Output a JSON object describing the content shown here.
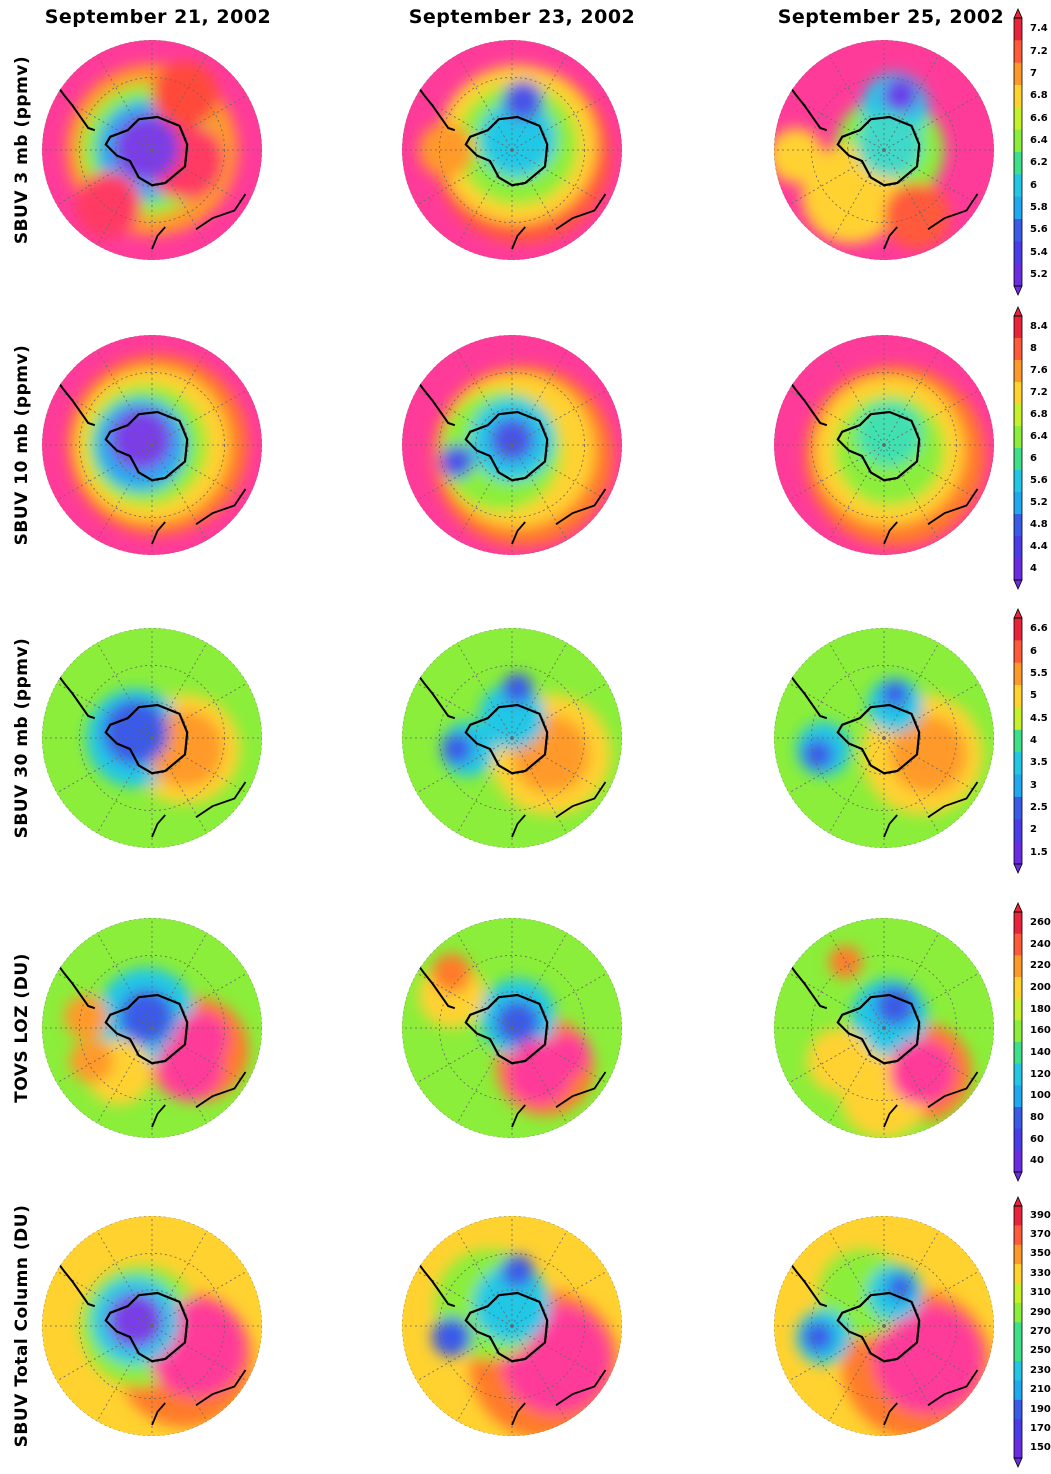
{
  "columns": [
    {
      "date": "September 21, 2002"
    },
    {
      "date": "September 23, 2002"
    },
    {
      "date": "September 25, 2002"
    }
  ],
  "rows": [
    {
      "label": "SBUV 3 mb (ppmv)",
      "colorbar_ticks": [
        "7.4",
        "7.2",
        "7",
        "6.8",
        "6.6",
        "6.4",
        "6.2",
        "6",
        "5.8",
        "5.6",
        "5.4",
        "5.2"
      ],
      "maps": [
        {
          "field_blobs": [
            [
              -0.05,
              -0.02,
              0.3,
              "#7a3ce8"
            ],
            [
              -0.05,
              0.0,
              0.45,
              "#1ea9f0"
            ],
            [
              -0.05,
              0.0,
              0.6,
              "#8bee3a"
            ],
            [
              0.0,
              0.0,
              0.78,
              "#ff9a2a"
            ],
            [
              0.3,
              0.1,
              0.35,
              "#ff3b63"
            ],
            [
              -0.4,
              0.5,
              0.3,
              "#ff3b63"
            ],
            [
              0.3,
              -0.5,
              0.3,
              "#ff4a3a"
            ]
          ],
          "base": "#ff3b9a"
        },
        {
          "field_blobs": [
            [
              0.05,
              -0.1,
              0.35,
              "#22c7e6"
            ],
            [
              0.1,
              -0.45,
              0.18,
              "#4a52e8"
            ],
            [
              0.05,
              -0.05,
              0.55,
              "#8bee3a"
            ],
            [
              0.05,
              -0.05,
              0.72,
              "#ffd230"
            ],
            [
              -0.6,
              0.0,
              0.25,
              "#ff9a2a"
            ],
            [
              0.1,
              0.05,
              0.8,
              "#ff5a3a"
            ]
          ],
          "base": "#ff3b9a"
        },
        {
          "field_blobs": [
            [
              0.15,
              -0.5,
              0.16,
              "#6a3ce8"
            ],
            [
              0.1,
              -0.4,
              0.3,
              "#22c7e6"
            ],
            [
              0.05,
              -0.05,
              0.3,
              "#40d8c8"
            ],
            [
              0.05,
              0.0,
              0.5,
              "#8bee3a"
            ],
            [
              -0.3,
              0.4,
              0.45,
              "#ffd230"
            ],
            [
              0.3,
              0.6,
              0.3,
              "#ff5a3a"
            ],
            [
              -0.8,
              0.05,
              0.25,
              "#ffd230"
            ]
          ],
          "base": "#ff3b9a"
        }
      ]
    },
    {
      "label": "SBUV 10 mb (ppmv)",
      "colorbar_ticks": [
        "8.4",
        "8",
        "7.6",
        "7.2",
        "6.8",
        "6.4",
        "6",
        "5.6",
        "5.2",
        "4.8",
        "4.4",
        "4"
      ],
      "maps": [
        {
          "field_blobs": [
            [
              -0.1,
              -0.05,
              0.28,
              "#7a3ce8"
            ],
            [
              -0.1,
              0.0,
              0.42,
              "#1ea9f0"
            ],
            [
              -0.05,
              0.0,
              0.55,
              "#8bee3a"
            ],
            [
              0.0,
              0.0,
              0.7,
              "#ffd230"
            ],
            [
              0.05,
              0.0,
              0.82,
              "#ff7a2a"
            ]
          ],
          "base": "#ff3b9a"
        },
        {
          "field_blobs": [
            [
              0.0,
              -0.05,
              0.2,
              "#4a52e8"
            ],
            [
              -0.5,
              0.15,
              0.15,
              "#4a52e8"
            ],
            [
              0.0,
              -0.05,
              0.38,
              "#22c7e6"
            ],
            [
              -0.1,
              0.05,
              0.55,
              "#8bee3a"
            ],
            [
              0.05,
              0.05,
              0.7,
              "#ffd230"
            ],
            [
              0.1,
              0.1,
              0.82,
              "#ff7a2a"
            ]
          ],
          "base": "#ff3b9a"
        },
        {
          "field_blobs": [
            [
              0.05,
              -0.1,
              0.3,
              "#40e0b0"
            ],
            [
              0.05,
              0.05,
              0.5,
              "#8bee3a"
            ],
            [
              0.05,
              0.05,
              0.68,
              "#ffd230"
            ],
            [
              0.1,
              0.1,
              0.82,
              "#ff7a2a"
            ]
          ],
          "base": "#ff3b9a"
        }
      ]
    },
    {
      "label": "SBUV 30 mb (ppmv)",
      "colorbar_ticks": [
        "6.6",
        "6",
        "5.5",
        "5",
        "4.5",
        "4",
        "3.5",
        "3",
        "2.5",
        "2",
        "1.5"
      ],
      "maps": [
        {
          "field_blobs": [
            [
              -0.15,
              -0.05,
              0.3,
              "#3a5ae8"
            ],
            [
              -0.15,
              0.0,
              0.45,
              "#22c7e6"
            ],
            [
              0.3,
              0.1,
              0.35,
              "#ff9a2a"
            ],
            [
              0.3,
              0.1,
              0.5,
              "#ffd230"
            ]
          ],
          "base": "#8bee3a"
        },
        {
          "field_blobs": [
            [
              0.05,
              -0.45,
              0.14,
              "#3a5ae8"
            ],
            [
              -0.5,
              0.1,
              0.14,
              "#3a5ae8"
            ],
            [
              0.0,
              -0.2,
              0.3,
              "#22c7e6"
            ],
            [
              -0.4,
              0.1,
              0.25,
              "#22c7e6"
            ],
            [
              0.35,
              0.15,
              0.35,
              "#ff9a2a"
            ],
            [
              0.35,
              0.15,
              0.55,
              "#ffd230"
            ]
          ],
          "base": "#8bee3a"
        },
        {
          "field_blobs": [
            [
              0.1,
              -0.4,
              0.12,
              "#3a5ae8"
            ],
            [
              -0.6,
              0.15,
              0.14,
              "#3a5ae8"
            ],
            [
              0.1,
              -0.3,
              0.25,
              "#22c7e6"
            ],
            [
              -0.55,
              0.1,
              0.25,
              "#22c7e6"
            ],
            [
              0.4,
              0.15,
              0.35,
              "#ff9a2a"
            ],
            [
              0.35,
              0.15,
              0.55,
              "#ffd230"
            ]
          ],
          "base": "#8bee3a"
        }
      ]
    },
    {
      "label": "TOVS LOZ (DU)",
      "colorbar_ticks": [
        "260",
        "240",
        "220",
        "200",
        "180",
        "160",
        "140",
        "120",
        "100",
        "80",
        "60",
        "40"
      ],
      "maps": [
        {
          "field_blobs": [
            [
              -0.05,
              -0.1,
              0.25,
              "#3a5ae8"
            ],
            [
              -0.05,
              -0.1,
              0.45,
              "#22c7e6"
            ],
            [
              0.45,
              0.1,
              0.25,
              "#ff3b9a"
            ],
            [
              0.35,
              0.35,
              0.3,
              "#ff3b9a"
            ],
            [
              0.4,
              0.2,
              0.48,
              "#ff7a2a"
            ],
            [
              -0.6,
              -0.1,
              0.2,
              "#ff9a2a"
            ],
            [
              -0.55,
              0.3,
              0.2,
              "#ff9a2a"
            ],
            [
              -0.3,
              0.4,
              0.3,
              "#ffd230"
            ]
          ],
          "base": "#8bee3a"
        },
        {
          "field_blobs": [
            [
              0.05,
              -0.05,
              0.2,
              "#3a5ae8"
            ],
            [
              0.05,
              -0.1,
              0.35,
              "#22c7e6"
            ],
            [
              0.25,
              0.4,
              0.3,
              "#ff3b9a"
            ],
            [
              0.5,
              0.25,
              0.2,
              "#ff3b9a"
            ],
            [
              0.3,
              0.35,
              0.45,
              "#ff7a2a"
            ],
            [
              -0.55,
              -0.5,
              0.18,
              "#ff7a2a"
            ],
            [
              -0.55,
              -0.3,
              0.3,
              "#ffd230"
            ]
          ],
          "base": "#8bee3a"
        },
        {
          "field_blobs": [
            [
              0.1,
              -0.2,
              0.18,
              "#3a5ae8"
            ],
            [
              0.05,
              -0.1,
              0.35,
              "#22c7e6"
            ],
            [
              0.35,
              0.4,
              0.3,
              "#ff3b9a"
            ],
            [
              0.35,
              0.4,
              0.45,
              "#ff7a2a"
            ],
            [
              -0.35,
              -0.6,
              0.15,
              "#ff7a2a"
            ],
            [
              -0.4,
              0.3,
              0.3,
              "#ffd230"
            ],
            [
              0.0,
              0.6,
              0.4,
              "#ffd230"
            ]
          ],
          "base": "#8bee3a"
        }
      ]
    },
    {
      "label": "SBUV Total Column (DU)",
      "colorbar_ticks": [
        "390",
        "370",
        "350",
        "330",
        "310",
        "290",
        "270",
        "250",
        "230",
        "210",
        "190",
        "170",
        "150"
      ],
      "maps": [
        {
          "field_blobs": [
            [
              -0.15,
              -0.05,
              0.25,
              "#7a3ce8"
            ],
            [
              -0.15,
              -0.05,
              0.4,
              "#22c7e6"
            ],
            [
              0.4,
              0.2,
              0.45,
              "#ff3b9a"
            ],
            [
              0.3,
              0.3,
              0.62,
              "#ff7a2a"
            ],
            [
              -0.1,
              0.0,
              0.55,
              "#8bee3a"
            ]
          ],
          "base": "#ffd230"
        },
        {
          "field_blobs": [
            [
              0.05,
              -0.5,
              0.15,
              "#3a5ae8"
            ],
            [
              -0.55,
              0.1,
              0.18,
              "#3a5ae8"
            ],
            [
              0.0,
              -0.2,
              0.35,
              "#22c7e6"
            ],
            [
              0.4,
              0.3,
              0.5,
              "#ff3b9a"
            ],
            [
              0.3,
              0.35,
              0.68,
              "#ff7a2a"
            ],
            [
              -0.2,
              -0.2,
              0.5,
              "#8bee3a"
            ]
          ],
          "base": "#ffd230"
        },
        {
          "field_blobs": [
            [
              0.15,
              -0.35,
              0.12,
              "#3a5ae8"
            ],
            [
              -0.6,
              0.1,
              0.14,
              "#3a5ae8"
            ],
            [
              0.1,
              -0.3,
              0.25,
              "#22c7e6"
            ],
            [
              -0.55,
              0.1,
              0.25,
              "#22c7e6"
            ],
            [
              0.4,
              0.3,
              0.5,
              "#ff3b9a"
            ],
            [
              0.3,
              0.35,
              0.68,
              "#ff7a2a"
            ],
            [
              -0.2,
              -0.3,
              0.4,
              "#8bee3a"
            ]
          ],
          "base": "#ffd230"
        }
      ]
    }
  ]
}
